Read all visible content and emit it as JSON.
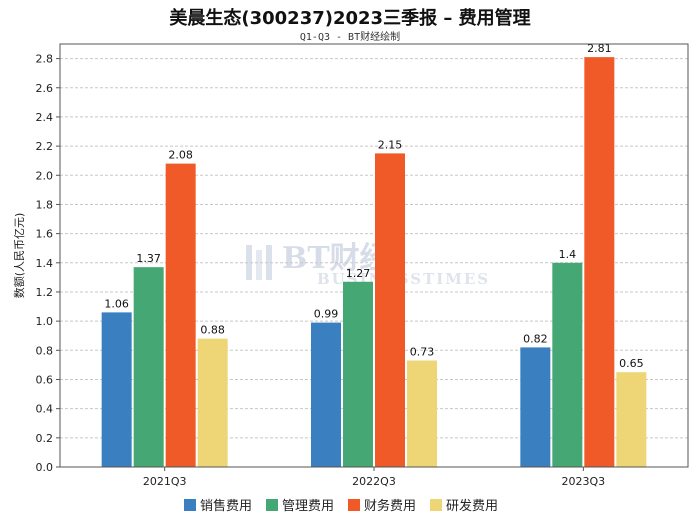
{
  "chart_data": {
    "type": "bar",
    "title": "美晨生态(300237)2023三季报 – 费用管理",
    "subtitle": "Q1-Q3 - BT财经绘制",
    "ylabel": "数额(人民币亿元)",
    "xlabel": "",
    "categories": [
      "2021Q3",
      "2022Q3",
      "2023Q3"
    ],
    "ylim": [
      0,
      2.9
    ],
    "yticks": [
      "0.0",
      "0.2",
      "0.4",
      "0.6",
      "0.8",
      "1.0",
      "1.2",
      "1.4",
      "1.6",
      "1.8",
      "2.0",
      "2.2",
      "2.4",
      "2.6",
      "2.8"
    ],
    "grid": true,
    "legend_position": "bottom",
    "series": [
      {
        "name": "销售费用",
        "color": "#3a80c0",
        "values": [
          1.06,
          0.99,
          0.82
        ],
        "labels": [
          "1.06",
          "0.99",
          "0.82"
        ]
      },
      {
        "name": "管理费用",
        "color": "#44a774",
        "values": [
          1.37,
          1.27,
          1.4
        ],
        "labels": [
          "1.37",
          "1.27",
          "1.4"
        ]
      },
      {
        "name": "财务费用",
        "color": "#f05a28",
        "values": [
          2.08,
          2.15,
          2.81
        ],
        "labels": [
          "2.08",
          "2.15",
          "2.81"
        ]
      },
      {
        "name": "研发费用",
        "color": "#eed676",
        "values": [
          0.88,
          0.73,
          0.65
        ],
        "labels": [
          "0.88",
          "0.73",
          "0.65"
        ]
      }
    ],
    "watermark": {
      "main": "BT财经",
      "sub": "BUSINESSTIMES"
    }
  }
}
